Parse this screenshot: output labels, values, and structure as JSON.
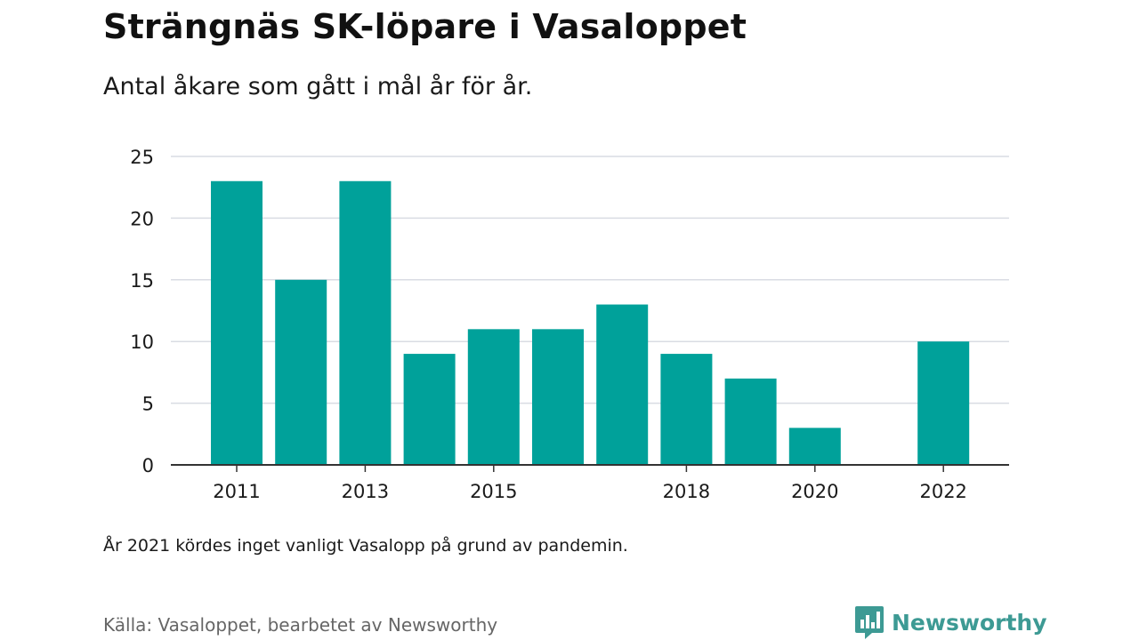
{
  "title": "Strängnäs SK-löpare i Vasaloppet",
  "subtitle": "Antal åkare som gått i mål år för år.",
  "note": "År 2021 kördes inget vanligt Vasalopp på grund av pandemin.",
  "source": "Källa: Vasaloppet, bearbetet av Newsworthy",
  "brand": {
    "name": "Newsworthy",
    "color": "#3d9a94"
  },
  "colors": {
    "bar": "#00a19a",
    "grid": "#d9dce3",
    "axis": "#333333"
  },
  "chart_data": {
    "type": "bar",
    "title": "Strängnäs SK-löpare i Vasaloppet",
    "xlabel": "",
    "ylabel": "",
    "ylim": [
      0,
      25
    ],
    "yticks": [
      0,
      5,
      10,
      15,
      20,
      25
    ],
    "xticks": [
      "2011",
      "2013",
      "2015",
      "2018",
      "2020",
      "2022"
    ],
    "grid": true,
    "categories": [
      "2011",
      "2012",
      "2013",
      "2014",
      "2015",
      "2016",
      "2017",
      "2018",
      "2019",
      "2020",
      "2021",
      "2022"
    ],
    "values": [
      23,
      15,
      23,
      9,
      11,
      11,
      13,
      9,
      7,
      3,
      null,
      10
    ]
  }
}
